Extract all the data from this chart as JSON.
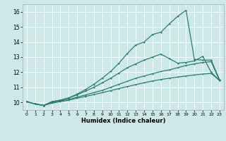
{
  "xlabel": "Humidex (Indice chaleur)",
  "background_color": "#cce8e8",
  "grid_color": "#ffffff",
  "line_color": "#2e7d6e",
  "xlim": [
    -0.5,
    23.5
  ],
  "ylim": [
    9.5,
    16.5
  ],
  "xticks": [
    0,
    1,
    2,
    3,
    4,
    5,
    6,
    7,
    8,
    9,
    10,
    11,
    12,
    13,
    14,
    15,
    16,
    17,
    18,
    19,
    20,
    21,
    22,
    23
  ],
  "yticks": [
    10,
    11,
    12,
    13,
    14,
    15,
    16
  ],
  "series1_x": [
    0,
    1,
    2,
    3,
    4,
    5,
    6,
    7,
    8,
    9,
    10,
    11,
    12,
    13,
    14,
    15,
    16,
    17,
    18,
    19,
    20,
    21,
    22,
    23
  ],
  "series1_y": [
    10.05,
    9.9,
    9.8,
    10.05,
    10.15,
    10.3,
    10.55,
    10.85,
    11.2,
    11.6,
    12.05,
    12.6,
    13.25,
    13.8,
    14.0,
    14.5,
    14.65,
    15.2,
    15.7,
    16.1,
    12.85,
    12.8,
    12.8,
    11.5
  ],
  "series2_x": [
    0,
    1,
    2,
    3,
    4,
    5,
    6,
    7,
    8,
    9,
    10,
    11,
    12,
    13,
    14,
    15,
    16,
    17,
    18,
    19,
    20,
    21,
    22,
    23
  ],
  "series2_y": [
    10.05,
    9.9,
    9.8,
    10.05,
    10.15,
    10.3,
    10.5,
    10.75,
    11.0,
    11.3,
    11.6,
    11.95,
    12.3,
    12.55,
    12.8,
    13.0,
    13.2,
    12.9,
    12.6,
    12.65,
    12.75,
    13.05,
    12.0,
    11.45
  ],
  "series3_x": [
    0,
    1,
    2,
    3,
    4,
    5,
    6,
    7,
    8,
    9,
    10,
    11,
    12,
    13,
    14,
    15,
    16,
    17,
    18,
    19,
    20,
    21,
    22,
    23
  ],
  "series3_y": [
    10.05,
    9.9,
    9.8,
    10.0,
    10.1,
    10.2,
    10.35,
    10.5,
    10.65,
    10.8,
    11.0,
    11.2,
    11.4,
    11.6,
    11.75,
    11.9,
    12.05,
    12.15,
    12.3,
    12.45,
    12.55,
    12.65,
    12.7,
    11.45
  ],
  "series4_x": [
    0,
    1,
    2,
    3,
    4,
    5,
    6,
    7,
    8,
    9,
    10,
    11,
    12,
    13,
    14,
    15,
    16,
    17,
    18,
    19,
    20,
    21,
    22,
    23
  ],
  "series4_y": [
    10.05,
    9.9,
    9.8,
    9.95,
    10.05,
    10.15,
    10.28,
    10.4,
    10.52,
    10.65,
    10.78,
    10.92,
    11.05,
    11.18,
    11.3,
    11.42,
    11.52,
    11.6,
    11.68,
    11.75,
    11.82,
    11.88,
    11.92,
    11.45
  ]
}
